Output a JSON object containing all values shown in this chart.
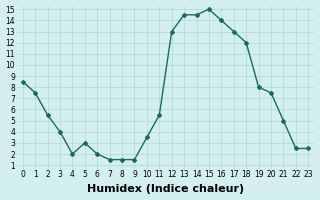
{
  "x": [
    0,
    1,
    2,
    3,
    4,
    5,
    6,
    7,
    8,
    9,
    10,
    11,
    12,
    13,
    14,
    15,
    16,
    17,
    18,
    19,
    20,
    21,
    22,
    23
  ],
  "y": [
    8.5,
    7.5,
    5.5,
    4.0,
    2.0,
    3.0,
    2.0,
    1.5,
    1.5,
    1.5,
    3.5,
    5.5,
    13.0,
    14.5,
    14.5,
    15.0,
    14.0,
    13.0,
    12.0,
    8.0,
    7.5,
    5.0,
    2.5,
    2.5
  ],
  "line_color": "#1a6b5a",
  "marker": "D",
  "marker_size": 2.0,
  "bg_color": "#d4efef",
  "grid_color": "#b0d8d8",
  "xlabel": "Humidex (Indice chaleur)",
  "xlabel_fontsize": 8,
  "ylim_min": 1,
  "ylim_max": 15,
  "xlim_min": 0,
  "xlim_max": 23,
  "yticks": [
    1,
    2,
    3,
    4,
    5,
    6,
    7,
    8,
    9,
    10,
    11,
    12,
    13,
    14,
    15
  ],
  "xticks": [
    0,
    1,
    2,
    3,
    4,
    5,
    6,
    7,
    8,
    9,
    10,
    11,
    12,
    13,
    14,
    15,
    16,
    17,
    18,
    19,
    20,
    21,
    22,
    23
  ],
  "tick_fontsize": 5.5,
  "line_width": 1.0
}
